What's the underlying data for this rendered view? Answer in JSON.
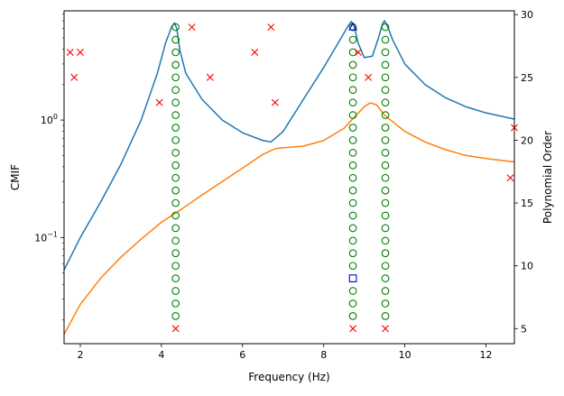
{
  "chart_data": {
    "type": "line",
    "xlabel": "Frequency (Hz)",
    "ylabel_left": "CMIF",
    "ylabel_right": "Polynomial Order",
    "xlim": [
      1.6,
      12.7
    ],
    "ylim_left_log": [
      0.0125,
      8.5
    ],
    "ylim_right": [
      3.8,
      30.3
    ],
    "x_ticks": [
      2,
      4,
      6,
      8,
      10,
      12
    ],
    "y_left_ticks": [
      {
        "value": 0.1,
        "label": "10",
        "exp": "−1"
      },
      {
        "value": 1,
        "label": "10",
        "exp": "0"
      }
    ],
    "y_right_ticks": [
      5,
      10,
      15,
      20,
      25,
      30
    ],
    "series": [
      {
        "color": "#1f77b4",
        "x": [
          1.6,
          2.0,
          2.5,
          3.0,
          3.5,
          3.9,
          4.1,
          4.25,
          4.32,
          4.38,
          4.45,
          4.6,
          5.0,
          5.5,
          6.0,
          6.5,
          6.7,
          7.0,
          7.5,
          8.0,
          8.4,
          8.6,
          8.68,
          8.75,
          8.85,
          9.0,
          9.2,
          9.35,
          9.45,
          9.5,
          9.58,
          9.7,
          10.0,
          10.5,
          11.0,
          11.5,
          12.0,
          12.7
        ],
        "values": [
          0.053,
          0.1,
          0.2,
          0.42,
          1.0,
          2.5,
          4.5,
          6.2,
          6.7,
          6.0,
          4.0,
          2.5,
          1.5,
          1.0,
          0.78,
          0.67,
          0.65,
          0.8,
          1.5,
          2.8,
          4.8,
          6.3,
          6.9,
          6.3,
          4.5,
          3.4,
          3.5,
          5.0,
          6.6,
          7.0,
          6.2,
          4.8,
          3.0,
          2.0,
          1.55,
          1.3,
          1.15,
          1.02
        ]
      },
      {
        "color": "#ff7f0e",
        "x": [
          1.6,
          2.0,
          2.5,
          3.0,
          3.5,
          4.0,
          4.5,
          5.0,
          5.5,
          6.0,
          6.5,
          6.8,
          7.0,
          7.5,
          8.0,
          8.5,
          8.8,
          9.0,
          9.15,
          9.3,
          9.5,
          10.0,
          10.5,
          11.0,
          11.5,
          12.0,
          12.7
        ],
        "values": [
          0.015,
          0.027,
          0.045,
          0.068,
          0.097,
          0.135,
          0.175,
          0.23,
          0.3,
          0.39,
          0.51,
          0.57,
          0.58,
          0.6,
          0.67,
          0.85,
          1.1,
          1.3,
          1.4,
          1.35,
          1.1,
          0.8,
          0.65,
          0.56,
          0.5,
          0.47,
          0.44
        ]
      }
    ],
    "stability_markers": {
      "stable_circles": {
        "color": "#008000",
        "points": [
          [
            4.35,
            6
          ],
          [
            4.35,
            7
          ],
          [
            4.35,
            8
          ],
          [
            4.35,
            9
          ],
          [
            4.35,
            10
          ],
          [
            4.35,
            11
          ],
          [
            4.35,
            12
          ],
          [
            4.35,
            13
          ],
          [
            4.35,
            14
          ],
          [
            4.35,
            15
          ],
          [
            4.35,
            16
          ],
          [
            4.35,
            17
          ],
          [
            4.35,
            18
          ],
          [
            4.35,
            19
          ],
          [
            4.35,
            20
          ],
          [
            4.35,
            21
          ],
          [
            4.35,
            22
          ],
          [
            4.35,
            23
          ],
          [
            4.35,
            24
          ],
          [
            4.35,
            25
          ],
          [
            4.35,
            26
          ],
          [
            4.35,
            27
          ],
          [
            4.35,
            28
          ],
          [
            4.35,
            29
          ],
          [
            8.72,
            6
          ],
          [
            8.72,
            7
          ],
          [
            8.72,
            8
          ],
          [
            8.72,
            10
          ],
          [
            8.72,
            11
          ],
          [
            8.72,
            12
          ],
          [
            8.72,
            13
          ],
          [
            8.72,
            14
          ],
          [
            8.72,
            15
          ],
          [
            8.72,
            16
          ],
          [
            8.72,
            17
          ],
          [
            8.72,
            18
          ],
          [
            8.72,
            19
          ],
          [
            8.72,
            20
          ],
          [
            8.72,
            21
          ],
          [
            8.72,
            22
          ],
          [
            8.72,
            23
          ],
          [
            8.72,
            24
          ],
          [
            8.72,
            25
          ],
          [
            8.72,
            26
          ],
          [
            8.72,
            27
          ],
          [
            8.72,
            28
          ],
          [
            8.72,
            29
          ],
          [
            9.52,
            6
          ],
          [
            9.52,
            7
          ],
          [
            9.52,
            8
          ],
          [
            9.52,
            9
          ],
          [
            9.52,
            10
          ],
          [
            9.52,
            11
          ],
          [
            9.52,
            12
          ],
          [
            9.52,
            13
          ],
          [
            9.52,
            14
          ],
          [
            9.52,
            15
          ],
          [
            9.52,
            16
          ],
          [
            9.52,
            17
          ],
          [
            9.52,
            18
          ],
          [
            9.52,
            19
          ],
          [
            9.52,
            20
          ],
          [
            9.52,
            21
          ],
          [
            9.52,
            22
          ],
          [
            9.52,
            23
          ],
          [
            9.52,
            24
          ],
          [
            9.52,
            25
          ],
          [
            9.52,
            26
          ],
          [
            9.52,
            27
          ],
          [
            9.52,
            28
          ],
          [
            9.52,
            29
          ]
        ]
      },
      "unstable_x": {
        "color": "#ff0000",
        "points": [
          [
            1.75,
            27
          ],
          [
            2.0,
            27
          ],
          [
            1.85,
            25
          ],
          [
            3.95,
            23
          ],
          [
            4.75,
            29
          ],
          [
            5.2,
            25
          ],
          [
            6.3,
            27
          ],
          [
            6.7,
            29
          ],
          [
            6.8,
            23
          ],
          [
            8.85,
            27
          ],
          [
            9.1,
            25
          ],
          [
            12.7,
            21
          ],
          [
            12.6,
            17
          ],
          [
            4.35,
            5
          ],
          [
            8.72,
            5
          ],
          [
            9.52,
            5
          ]
        ]
      },
      "frequency_stable_triangle": {
        "color": "#0000cd",
        "points": [
          [
            8.72,
            29
          ]
        ]
      },
      "frequency_stable_square": {
        "color": "#0000cd",
        "points": [
          [
            8.72,
            9
          ]
        ]
      }
    }
  }
}
